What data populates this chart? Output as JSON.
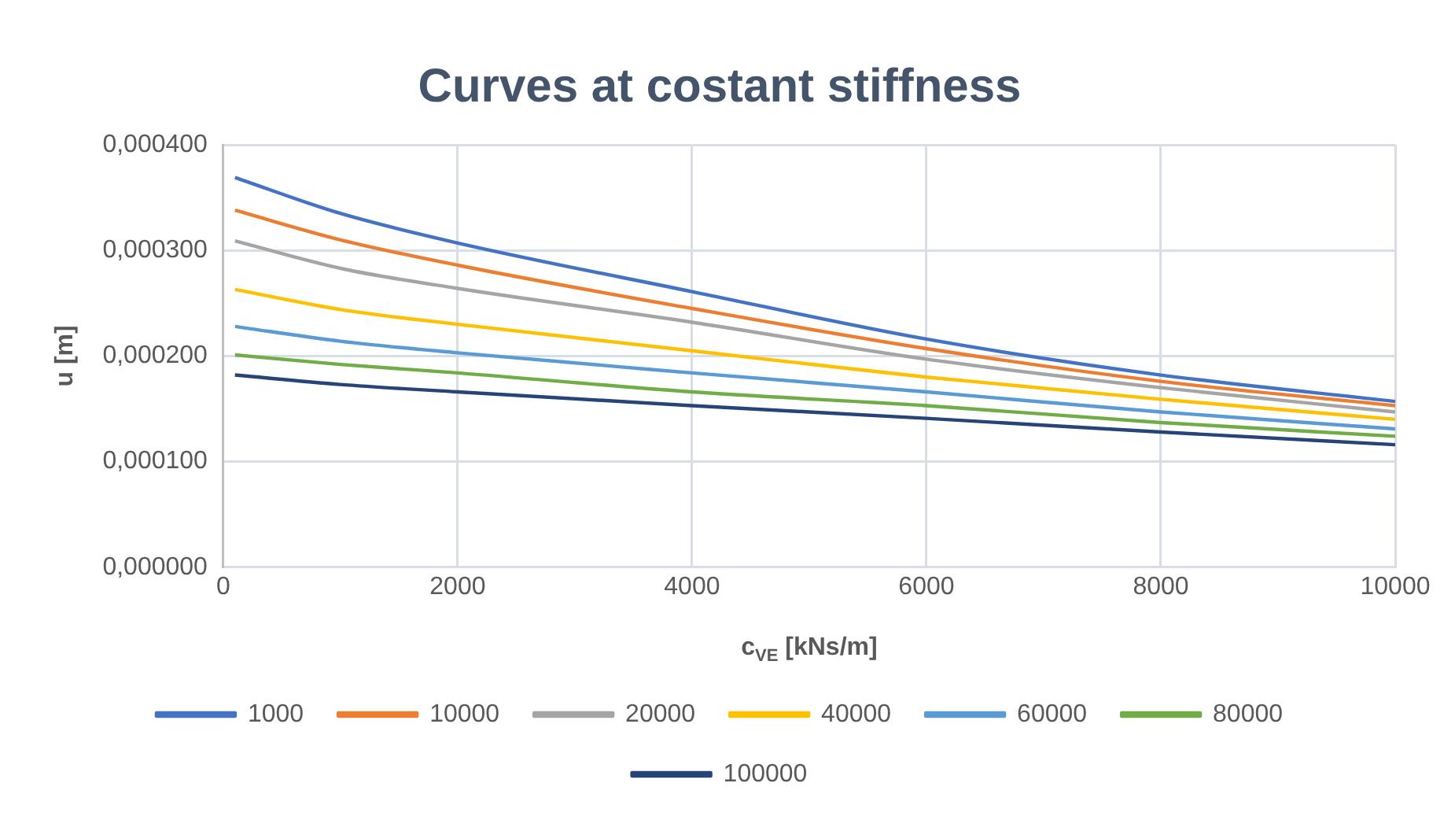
{
  "chart_data": {
    "type": "line",
    "title": "Curves at costant stiffness",
    "xlabel": "c$_{VE}$ [kNs/m]",
    "ylabel": "u [m]",
    "x": [
      100,
      1000,
      2000,
      4000,
      6000,
      8000,
      10000
    ],
    "xlim": [
      0,
      10000
    ],
    "xticks": [
      0,
      2000,
      4000,
      6000,
      8000,
      10000
    ],
    "ylim": [
      0,
      0.0004
    ],
    "yticks": [
      {
        "value": 0,
        "label": "0,000000"
      },
      {
        "value": 0.0001,
        "label": "0,000100"
      },
      {
        "value": 0.0002,
        "label": "0,000200"
      },
      {
        "value": 0.0003,
        "label": "0,000300"
      },
      {
        "value": 0.0004,
        "label": "0,000400"
      }
    ],
    "grid": true,
    "legend": "bottom",
    "marker": "none",
    "line_style": "solid",
    "series": [
      {
        "name": "1000",
        "color": "#4472c4",
        "values": [
          0.000369,
          0.000335,
          0.000307,
          0.000261,
          0.000216,
          0.000182,
          0.000157
        ]
      },
      {
        "name": "10000",
        "color": "#ed7d31",
        "values": [
          0.000338,
          0.00031,
          0.000286,
          0.000245,
          0.000207,
          0.000176,
          0.000153
        ]
      },
      {
        "name": "20000",
        "color": "#a5a5a5",
        "values": [
          0.000309,
          0.000283,
          0.000264,
          0.000232,
          0.000197,
          0.00017,
          0.000147
        ]
      },
      {
        "name": "40000",
        "color": "#ffc000",
        "values": [
          0.000263,
          0.000244,
          0.00023,
          0.000205,
          0.00018,
          0.000159,
          0.00014
        ]
      },
      {
        "name": "60000",
        "color": "#5b9bd5",
        "values": [
          0.000228,
          0.000214,
          0.000203,
          0.000184,
          0.000166,
          0.000147,
          0.000131
        ]
      },
      {
        "name": "80000",
        "color": "#70ad47",
        "values": [
          0.000201,
          0.000192,
          0.000184,
          0.000166,
          0.000153,
          0.000137,
          0.000124
        ]
      },
      {
        "name": "100000",
        "color": "#264478",
        "values": [
          0.000182,
          0.000173,
          0.000166,
          0.000153,
          0.000141,
          0.000128,
          0.000116
        ]
      }
    ]
  }
}
